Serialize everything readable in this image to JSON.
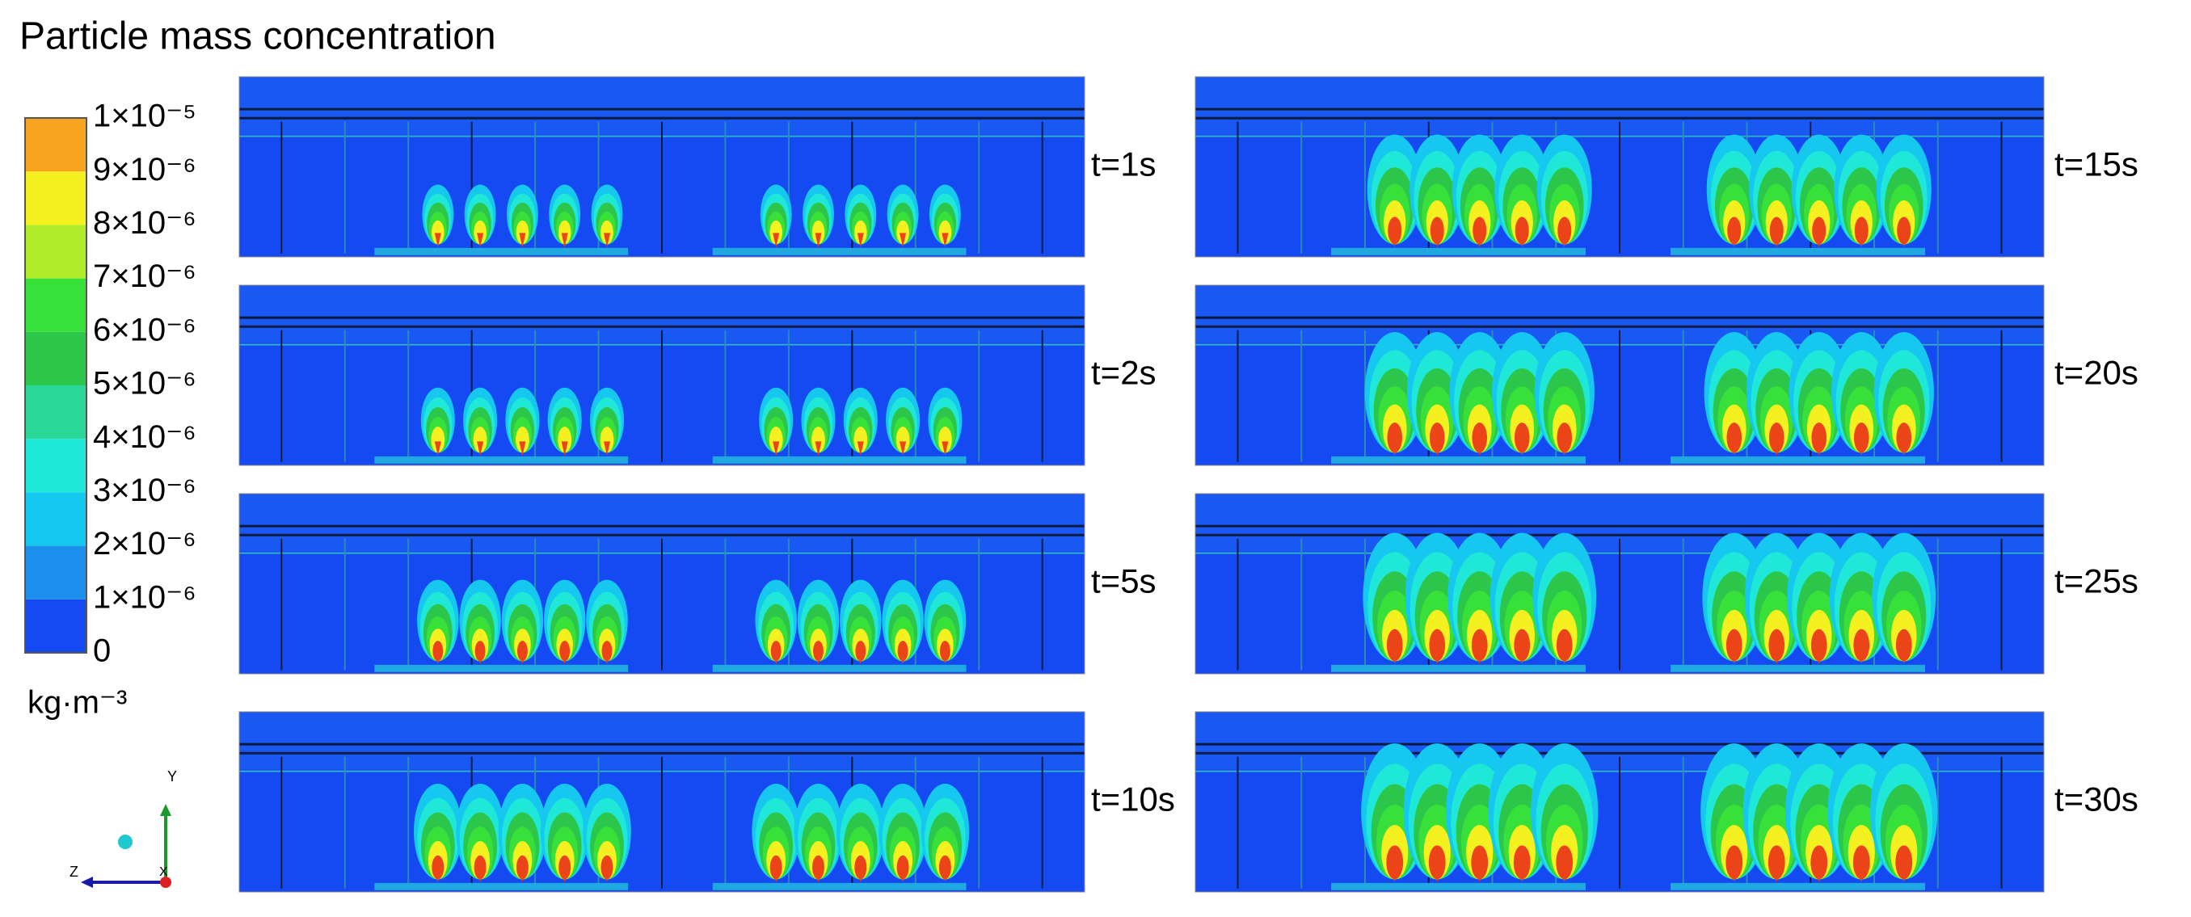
{
  "title": "Particle mass concentration",
  "colorbar": {
    "labels": [
      "0",
      "1×10⁻⁶",
      "2×10⁻⁶",
      "3×10⁻⁶",
      "4×10⁻⁶",
      "5×10⁻⁶",
      "6×10⁻⁶",
      "7×10⁻⁶",
      "8×10⁻⁶",
      "9×10⁻⁶",
      "1×10⁻⁵"
    ],
    "colors": [
      "#1549f2",
      "#1d8fec",
      "#16c8f0",
      "#20e8d8",
      "#2ad99a",
      "#2cc74a",
      "#38e03a",
      "#b0ec2a",
      "#f5f020",
      "#f7a51e",
      "#ea4418"
    ]
  },
  "unit": "kg·m⁻³",
  "panels": [
    {
      "label": "t=1s"
    },
    {
      "label": "t=2s"
    },
    {
      "label": "t=5s"
    },
    {
      "label": "t=10s"
    },
    {
      "label": "t=15s"
    },
    {
      "label": "t=20s"
    },
    {
      "label": "t=25s"
    },
    {
      "label": "t=30s"
    }
  ],
  "axes": {
    "y": "Y",
    "z": "Z",
    "x": "X"
  }
}
